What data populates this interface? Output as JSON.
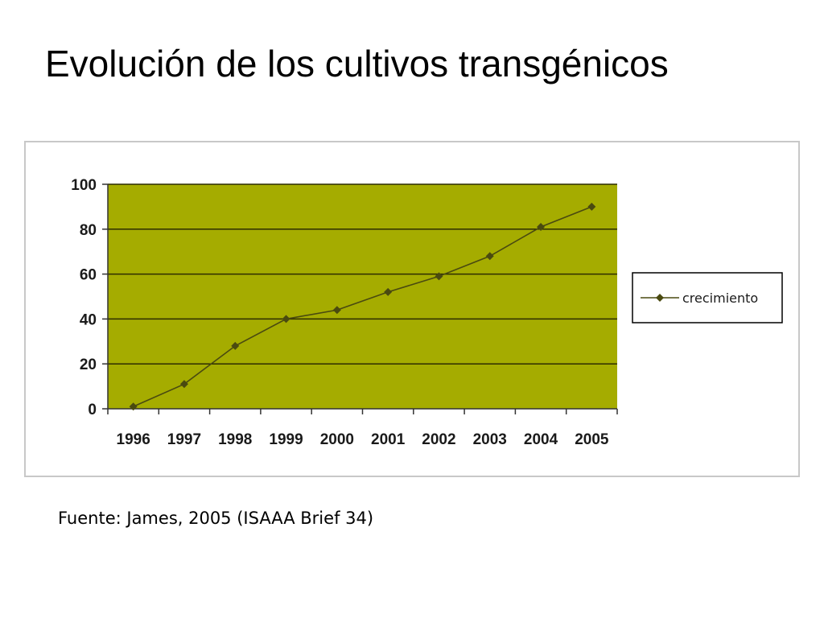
{
  "slide": {
    "title": "Evolución de los cultivos transgénicos",
    "source": "Fuente: James, 2005 (ISAAA Brief 34)"
  },
  "chart_data": {
    "type": "line",
    "categories": [
      "1996",
      "1997",
      "1998",
      "1999",
      "2000",
      "2001",
      "2002",
      "2003",
      "2004",
      "2005"
    ],
    "series": [
      {
        "name": "crecimiento",
        "values": [
          1,
          11,
          28,
          40,
          44,
          52,
          59,
          68,
          81,
          90
        ],
        "color": "#4a4a10"
      }
    ],
    "y_ticks": [
      "0",
      "20",
      "40",
      "60",
      "80",
      "100"
    ],
    "ylim": [
      0,
      100
    ],
    "grid": true,
    "legend_position": "right",
    "plot_background": "#a5ac00",
    "gridline_color": "#2d2d00"
  }
}
